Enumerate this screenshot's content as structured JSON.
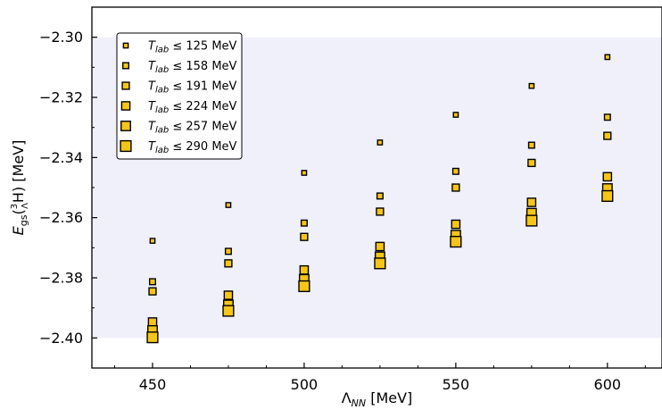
{
  "chart_data": {
    "type": "scatter",
    "xlabel": "Λ_NN [MeV]",
    "ylabel": "E_gs(³_ΛH) [MeV]",
    "xlim": [
      430,
      618
    ],
    "ylim": [
      -2.41,
      -2.29
    ],
    "x_ticks": [
      450,
      500,
      550,
      600
    ],
    "y_ticks": [
      -2.3,
      -2.32,
      -2.34,
      -2.36,
      -2.38,
      -2.4
    ],
    "x_tick_labels": [
      "450",
      "500",
      "550",
      "600"
    ],
    "y_tick_labels": [
      "−2.30",
      "−2.32",
      "−2.34",
      "−2.36",
      "−2.38",
      "−2.40"
    ],
    "shaded_band": {
      "y_from": -2.4,
      "y_to": -2.3,
      "color": "#f0f0fb"
    },
    "marker_color": "#f5c518",
    "marker_edge": "#000000",
    "legend_position": "top-left",
    "x": [
      450,
      475,
      500,
      525,
      550,
      575,
      600
    ],
    "series": [
      {
        "name": "T_lab ≤ 125 MeV",
        "label_main": "T",
        "label_sub": "lab",
        "label_rest": " ≤ 125 MeV",
        "size": 1,
        "values": [
          -2.3677,
          -2.3558,
          -2.3451,
          -2.335,
          -2.3258,
          -2.3162,
          -2.3066
        ]
      },
      {
        "name": "T_lab ≤ 158 MeV",
        "label_main": "T",
        "label_sub": "lab",
        "label_rest": " ≤ 158 MeV",
        "size": 2,
        "values": [
          -2.3813,
          -2.3712,
          -2.3618,
          -2.3528,
          -2.3446,
          -2.3359,
          -2.3266
        ]
      },
      {
        "name": "T_lab ≤ 191 MeV",
        "label_main": "T",
        "label_sub": "lab",
        "label_rest": " ≤ 191 MeV",
        "size": 3,
        "values": [
          -2.3845,
          -2.3752,
          -2.3664,
          -2.358,
          -2.35,
          -2.3418,
          -2.3328
        ]
      },
      {
        "name": "T_lab ≤ 224 MeV",
        "label_main": "T",
        "label_sub": "lab",
        "label_rest": " ≤ 224 MeV",
        "size": 4,
        "values": [
          -2.3947,
          -2.3858,
          -2.3774,
          -2.3696,
          -2.3622,
          -2.3549,
          -2.3464
        ]
      },
      {
        "name": "T_lab ≤ 257 MeV",
        "label_main": "T",
        "label_sub": "lab",
        "label_rest": " ≤ 257 MeV",
        "size": 5,
        "values": [
          -2.3975,
          -2.389,
          -2.3805,
          -2.373,
          -2.3658,
          -2.3585,
          -2.3503
        ]
      },
      {
        "name": "T_lab ≤ 290 MeV",
        "label_main": "T",
        "label_sub": "lab",
        "label_rest": " ≤ 290 MeV",
        "size": 6,
        "values": [
          -2.3998,
          -2.391,
          -2.3828,
          -2.3752,
          -2.368,
          -2.361,
          -2.3528
        ]
      }
    ]
  }
}
